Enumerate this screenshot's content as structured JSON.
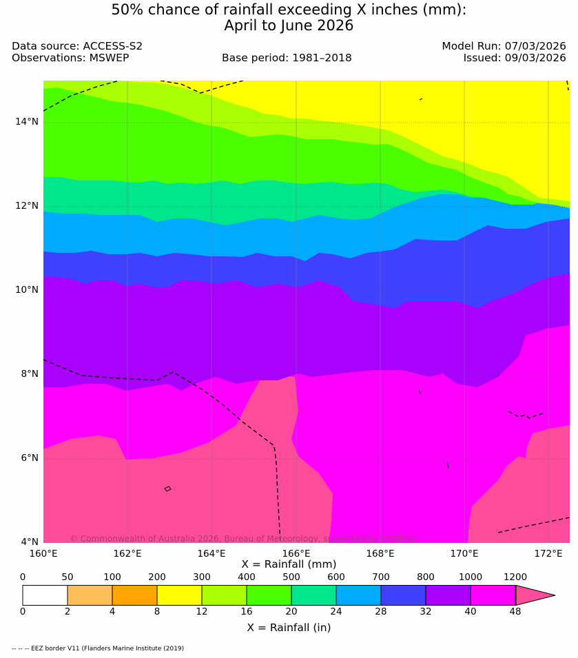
{
  "title": {
    "line1": "50% chance of rainfall exceeding X inches (mm):",
    "line2": "April to June 2026"
  },
  "header": {
    "data_source": "Data source: ACCESS-S2",
    "observations": "Observations: MSWEP",
    "base_period": "Base period: 1981–2018",
    "model_run": "Model Run: 07/03/2026",
    "issued": "Issued: 09/03/2026"
  },
  "map": {
    "copyright": "© Commonwealth of Australia 2026, Bureau of Meteorology, supported by COSPPac",
    "lat_ticks": [
      "14°N",
      "12°N",
      "10°N",
      "8°N",
      "6°N",
      "4°N"
    ],
    "lon_ticks": [
      "160°E",
      "162°E",
      "164°E",
      "166°E",
      "168°E",
      "170°E",
      "172°E"
    ],
    "extent": {
      "lon_min": 160,
      "lon_max": 172.5,
      "lat_min": 4,
      "lat_max": 15
    }
  },
  "legend": {
    "mm_title": "X = Rainfall (mm)",
    "in_title": "X = Rainfall (in)",
    "mm_labels": [
      "0",
      "50",
      "100",
      "200",
      "300",
      "400",
      "500",
      "600",
      "700",
      "800",
      "1000",
      "1200"
    ],
    "in_labels": [
      "0",
      "2",
      "4",
      "8",
      "12",
      "16",
      "20",
      "24",
      "28",
      "32",
      "40",
      "48"
    ],
    "colors": [
      "#ffffff",
      "#ffbe5a",
      "#ffa500",
      "#ffff00",
      "#aaff00",
      "#4cff00",
      "#00e68c",
      "#00aaff",
      "#4040ff",
      "#aa00ff",
      "#ff00ff",
      "#ff4b9b"
    ]
  },
  "footnote": "-- -- -- EEZ border V11 (Flanders Marine Institute (2019)"
}
